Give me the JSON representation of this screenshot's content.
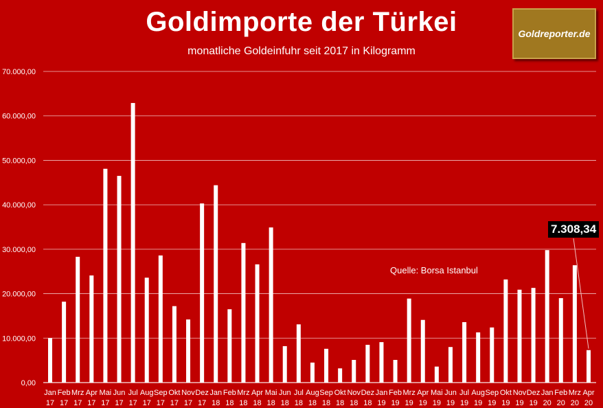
{
  "chart_data": {
    "type": "bar",
    "title": "Goldimporte der Türkei",
    "subtitle": "monatliche Goldeinfuhr seit 2017 in Kilogramm",
    "source": "Quelle: Borsa Istanbul",
    "logo_text": "Goldreporter.de",
    "callout": "7.308,34",
    "xlabel": "",
    "ylabel": "",
    "ylim": [
      0,
      70000
    ],
    "yticks": [
      "0,00",
      "10.000,00",
      "20.000,00",
      "30.000,00",
      "40.000,00",
      "50.000,00",
      "60.000,00",
      "70.000,00"
    ],
    "grid": true,
    "bar_color": "#ffffff",
    "background": "#c00000",
    "categories": [
      [
        "Jan",
        "17"
      ],
      [
        "Feb",
        "17"
      ],
      [
        "Mrz",
        "17"
      ],
      [
        "Apr",
        "17"
      ],
      [
        "Mai",
        "17"
      ],
      [
        "Jun",
        "17"
      ],
      [
        "Jul",
        "17"
      ],
      [
        "Aug",
        "17"
      ],
      [
        "Sep",
        "17"
      ],
      [
        "Okt",
        "17"
      ],
      [
        "Nov",
        "17"
      ],
      [
        "Dez",
        "17"
      ],
      [
        "Jan",
        "18"
      ],
      [
        "Feb",
        "18"
      ],
      [
        "Mrz",
        "18"
      ],
      [
        "Apr",
        "18"
      ],
      [
        "Mai",
        "18"
      ],
      [
        "Jun",
        "18"
      ],
      [
        "Jul",
        "18"
      ],
      [
        "Aug",
        "18"
      ],
      [
        "Sep",
        "18"
      ],
      [
        "Okt",
        "18"
      ],
      [
        "Nov",
        "18"
      ],
      [
        "Dez",
        "18"
      ],
      [
        "Jan",
        "19"
      ],
      [
        "Feb",
        "19"
      ],
      [
        "Mrz",
        "19"
      ],
      [
        "Apr",
        "19"
      ],
      [
        "Mai",
        "19"
      ],
      [
        "Jun",
        "19"
      ],
      [
        "Jul",
        "19"
      ],
      [
        "Aug",
        "19"
      ],
      [
        "Sep",
        "19"
      ],
      [
        "Okt",
        "19"
      ],
      [
        "Nov",
        "19"
      ],
      [
        "Dez",
        "19"
      ],
      [
        "Jan",
        "20"
      ],
      [
        "Feb",
        "20"
      ],
      [
        "Mrz",
        "20"
      ],
      [
        "Apr",
        "20"
      ]
    ],
    "values": [
      10000,
      18200,
      28300,
      24100,
      48100,
      46500,
      62900,
      23600,
      28600,
      17200,
      14200,
      40300,
      44400,
      16500,
      31400,
      26600,
      34900,
      8200,
      13100,
      4500,
      7600,
      3200,
      5100,
      8500,
      9100,
      5100,
      18900,
      14100,
      3600,
      8000,
      13600,
      11300,
      12400,
      23200,
      20900,
      21300,
      29800,
      19000,
      26400,
      7308.34
    ]
  }
}
